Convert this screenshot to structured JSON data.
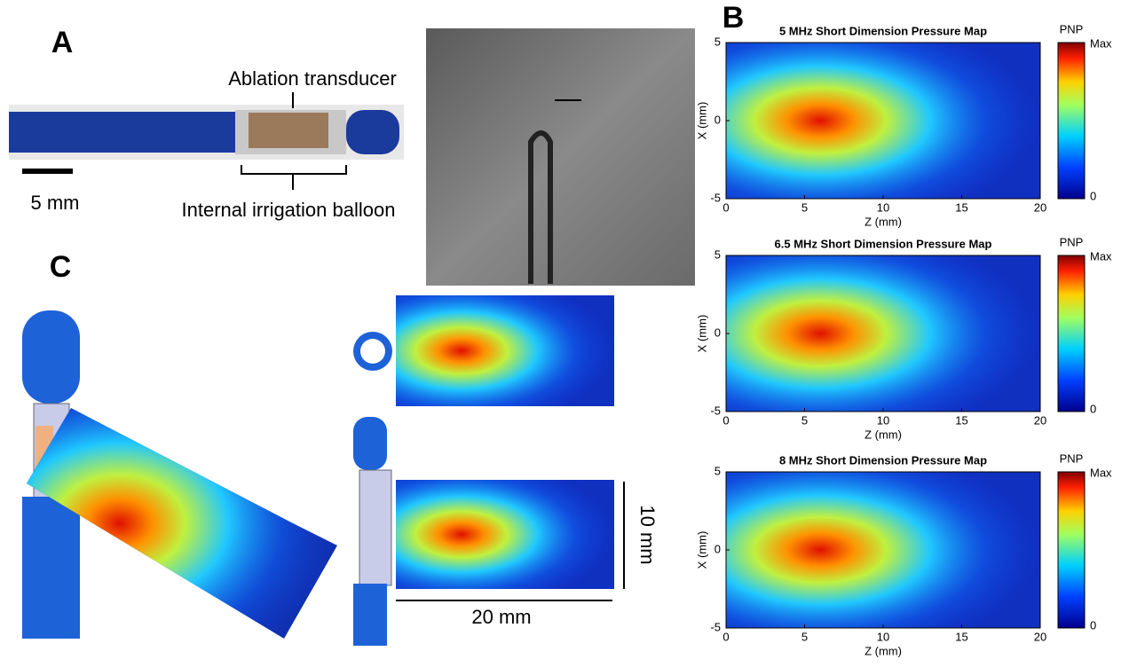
{
  "panels": {
    "a": {
      "label": "A",
      "annotations": [
        "Ablation transducer",
        "Internal irrigation balloon"
      ],
      "scale_bar": "5 mm"
    },
    "b": {
      "label": "B",
      "maps": [
        {
          "title": "5 MHz Short Dimension Pressure Map",
          "x_label": "Z (mm)",
          "y_label": "X (mm)",
          "xticks": [
            0,
            5,
            10,
            15,
            20
          ],
          "yticks": [
            -5,
            0,
            5
          ],
          "colorbar_title": "PNP",
          "colorbar_max": "Max",
          "colorbar_min": 0
        },
        {
          "title": "6.5 MHz Short Dimension Pressure Map",
          "x_label": "Z (mm)",
          "y_label": "X (mm)",
          "xticks": [
            0,
            5,
            10,
            15,
            20
          ],
          "yticks": [
            -5,
            0,
            5
          ],
          "colorbar_title": "PNP",
          "colorbar_max": "Max",
          "colorbar_min": 0
        },
        {
          "title": "8 MHz Short Dimension Pressure Map",
          "x_label": "Z (mm)",
          "y_label": "X (mm)",
          "xticks": [
            0,
            5,
            10,
            15,
            20
          ],
          "yticks": [
            -5,
            0,
            5
          ],
          "colorbar_title": "PNP",
          "colorbar_max": "Max",
          "colorbar_min": 0
        }
      ]
    },
    "c": {
      "label": "C",
      "dimensions": [
        "10 mm",
        "20 mm"
      ]
    }
  }
}
